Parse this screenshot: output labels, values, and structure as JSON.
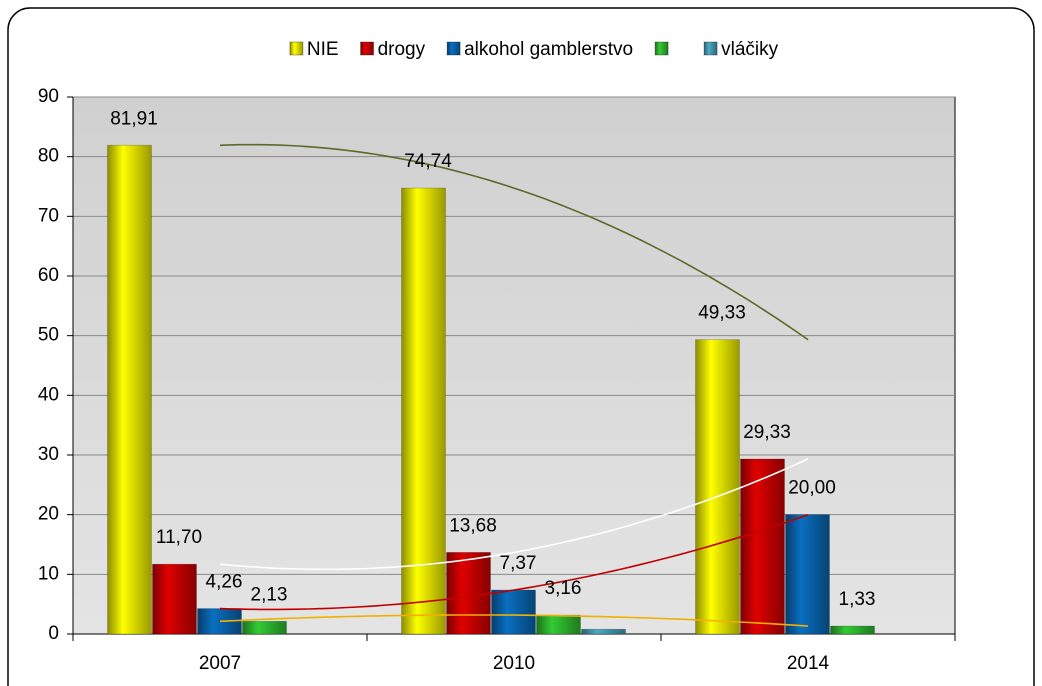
{
  "chart_data": {
    "type": "bar",
    "categories": [
      "2007",
      "2010",
      "2014"
    ],
    "series": [
      {
        "name": "NIE",
        "color": "#ffff00",
        "trendline_color": "#5b6b2b",
        "values": [
          81.91,
          74.74,
          49.33
        ],
        "value_labels": [
          "81,91",
          "74,74",
          "49,33"
        ]
      },
      {
        "name": "drogy",
        "color": "#e00000",
        "trendline_color": "#ffffff",
        "values": [
          11.7,
          13.68,
          29.33
        ],
        "value_labels": [
          "11,70",
          "13,68",
          "29,33"
        ]
      },
      {
        "name": "alkohol gamblerstvo",
        "color": "#0a6fc2",
        "trendline_color": "#c00000",
        "values": [
          4.26,
          7.37,
          20.0
        ],
        "value_labels": [
          "4,26",
          "7,37",
          "20,00"
        ]
      },
      {
        "color": "#33cc33",
        "trendline_color": "#f0b000",
        "values": [
          2.13,
          3.16,
          1.33
        ],
        "value_labels": [
          "2,13",
          "3,16",
          "1,33"
        ]
      },
      {
        "name": "vláčiky",
        "color": "#4bacc6",
        "values": [
          null,
          0.8,
          null
        ]
      }
    ],
    "ylim": [
      0,
      90
    ],
    "yticks": [
      0,
      10,
      20,
      30,
      40,
      50,
      60,
      70,
      80,
      90
    ],
    "grid": true,
    "legend": "top"
  }
}
